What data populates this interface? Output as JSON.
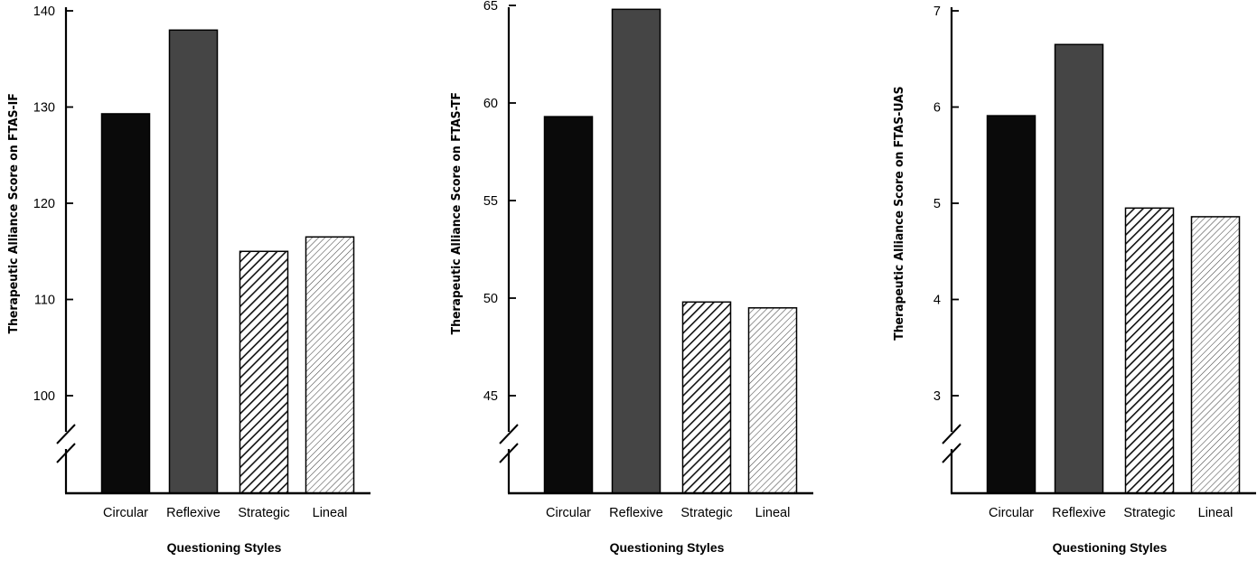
{
  "chart_data": [
    {
      "type": "bar",
      "ylabel": "Therapeutic Alliance Score on FTAS-IF",
      "xlabel": "Questioning Styles",
      "categories": [
        "Circular",
        "Reflexive",
        "Strategic",
        "Lineal"
      ],
      "values": [
        129.3,
        138.0,
        115.0,
        116.5
      ],
      "ylim": [
        90,
        140
      ],
      "yticks": [
        100,
        110,
        120,
        130,
        140
      ],
      "axis_break": true,
      "bar_styles": [
        "solid-black",
        "solid-darkgray",
        "hatch-dense",
        "hatch-light"
      ]
    },
    {
      "type": "bar",
      "ylabel": "Therapeutic Alliance Score on FTAS-TF",
      "xlabel": "Questioning Styles",
      "categories": [
        "Circular",
        "Reflexive",
        "Strategic",
        "Lineal"
      ],
      "values": [
        59.3,
        64.8,
        49.8,
        49.5
      ],
      "ylim": [
        40,
        65
      ],
      "yticks": [
        45,
        50,
        55,
        60,
        65
      ],
      "axis_break": true,
      "bar_styles": [
        "solid-black",
        "solid-darkgray",
        "hatch-dense",
        "hatch-light"
      ]
    },
    {
      "type": "bar",
      "ylabel": "Therapeutic Alliance Score on FTAS-UAS",
      "xlabel": "Questioning Styles",
      "categories": [
        "Circular",
        "Reflexive",
        "Strategic",
        "Lineal"
      ],
      "values": [
        5.91,
        6.65,
        4.95,
        4.86
      ],
      "ylim": [
        2,
        7
      ],
      "yticks": [
        3,
        4,
        5,
        6,
        7
      ],
      "axis_break": true,
      "bar_styles": [
        "solid-black",
        "solid-darkgray",
        "hatch-dense",
        "hatch-light"
      ]
    }
  ],
  "colors": {
    "solid-black": "#0a0a0a",
    "solid-darkgray": "#454545",
    "axis": "#000000"
  }
}
